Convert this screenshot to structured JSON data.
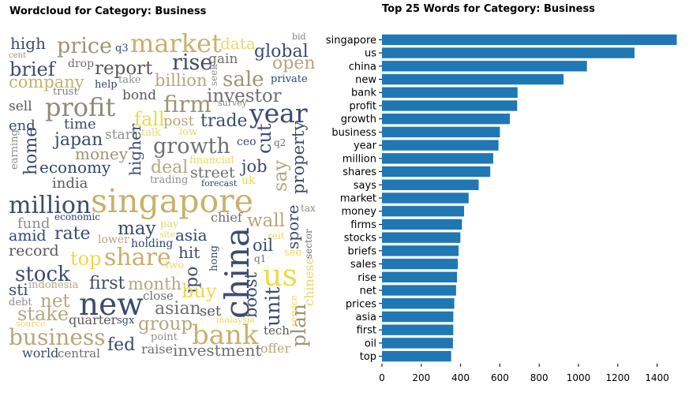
{
  "wordcloud": {
    "title": "Wordcloud for Category: Business",
    "words": [
      {
        "text": "high",
        "color": "#3e4a6e"
      },
      {
        "text": "q3",
        "color": "#2f4577"
      },
      {
        "text": "price",
        "color": "#9e9477"
      },
      {
        "text": "market",
        "color": "#c9b06c"
      },
      {
        "text": "data",
        "color": "#e8d86a"
      },
      {
        "text": "global",
        "color": "#3e4a6e"
      },
      {
        "text": "bid",
        "color": "#7f7f7f"
      },
      {
        "text": "cent",
        "color": "#9e9477"
      },
      {
        "text": "brief",
        "color": "#3e4a6e"
      },
      {
        "text": "drop",
        "color": "#6f6f6f"
      },
      {
        "text": "report",
        "color": "#595959"
      },
      {
        "text": "rise",
        "color": "#3e4a6e"
      },
      {
        "text": "gain",
        "color": "#6f6f6f"
      },
      {
        "text": "open",
        "color": "#b5a77e"
      },
      {
        "text": "company",
        "color": "#c9b06c"
      },
      {
        "text": "help",
        "color": "#2f4577"
      },
      {
        "text": "take",
        "color": "#8f8f8f"
      },
      {
        "text": "billion",
        "color": "#b5a77e"
      },
      {
        "text": "seek",
        "color": "#8f8f8f"
      },
      {
        "text": "sale",
        "color": "#9e9477"
      },
      {
        "text": "private",
        "color": "#2f4577"
      },
      {
        "text": "trust",
        "color": "#7f7f7f"
      },
      {
        "text": "bond",
        "color": "#595959"
      },
      {
        "text": "investor",
        "color": "#6f6f6f"
      },
      {
        "text": "sell",
        "color": "#595959"
      },
      {
        "text": "profit",
        "color": "#8f8a7a"
      },
      {
        "text": "firm",
        "color": "#9e9477"
      },
      {
        "text": "survey",
        "color": "#7f7f7f"
      },
      {
        "text": "year",
        "color": "#3e4a6e"
      },
      {
        "text": "end",
        "color": "#3e4a6e"
      },
      {
        "text": "time",
        "color": "#3e4a6e"
      },
      {
        "text": "fall",
        "color": "#f0d84a"
      },
      {
        "text": "post",
        "color": "#b5a77e"
      },
      {
        "text": "trade",
        "color": "#3e4a6e"
      },
      {
        "text": "start",
        "color": "#8f8f8f"
      },
      {
        "text": "talk",
        "color": "#e8d86a"
      },
      {
        "text": "low",
        "color": "#e8d86a"
      },
      {
        "text": "ceo",
        "color": "#3e4a6e"
      },
      {
        "text": "q2",
        "color": "#6f6f6f"
      },
      {
        "text": "earning",
        "color": "#8f8f8f"
      },
      {
        "text": "home",
        "color": "#3e4a6e"
      },
      {
        "text": "japan",
        "color": "#3e4a6e"
      },
      {
        "text": "higher",
        "color": "#3e4a6e"
      },
      {
        "text": "growth",
        "color": "#6f6f6f"
      },
      {
        "text": "cut",
        "color": "#3e4a6e"
      },
      {
        "text": "money",
        "color": "#9e9477"
      },
      {
        "text": "financial",
        "color": "#e8d86a"
      },
      {
        "text": "property",
        "color": "#3e4a6e"
      },
      {
        "text": "economy",
        "color": "#2f4577"
      },
      {
        "text": "deal",
        "color": "#b5a77e"
      },
      {
        "text": "street",
        "color": "#6f6f6f"
      },
      {
        "text": "job",
        "color": "#3e4a6e"
      },
      {
        "text": "say",
        "color": "#b5a77e"
      },
      {
        "text": "india",
        "color": "#595959"
      },
      {
        "text": "trading",
        "color": "#8f8f8f"
      },
      {
        "text": "forecast",
        "color": "#2f4577"
      },
      {
        "text": "uk",
        "color": "#f0d84a"
      },
      {
        "text": "million",
        "color": "#3e4a6e"
      },
      {
        "text": "singapore",
        "color": "#c9b06c"
      },
      {
        "text": "fund",
        "color": "#8f8f8f"
      },
      {
        "text": "economic",
        "color": "#2f4577"
      },
      {
        "text": "chief",
        "color": "#6f6f6f"
      },
      {
        "text": "wall",
        "color": "#b5a77e"
      },
      {
        "text": "tax",
        "color": "#8f8a7a"
      },
      {
        "text": "may",
        "color": "#3e4a6e"
      },
      {
        "text": "pay",
        "color": "#e8d86a"
      },
      {
        "text": "amid",
        "color": "#2f4577"
      },
      {
        "text": "rate",
        "color": "#3e4a6e"
      },
      {
        "text": "site",
        "color": "#e8d86a"
      },
      {
        "text": "asia",
        "color": "#2f4577"
      },
      {
        "text": "reit",
        "color": "#e8d86a"
      },
      {
        "text": "spore",
        "color": "#3e4a6e"
      },
      {
        "text": "sector",
        "color": "#6f6f6f"
      },
      {
        "text": "lower",
        "color": "#b5a77e"
      },
      {
        "text": "holding",
        "color": "#2f4577"
      },
      {
        "text": "china",
        "color": "#3e4a6e"
      },
      {
        "text": "record",
        "color": "#595959"
      },
      {
        "text": "hit",
        "color": "#3e4a6e"
      },
      {
        "text": "oil",
        "color": "#3e4a6e"
      },
      {
        "text": "see",
        "color": "#e8d86a"
      },
      {
        "text": "top",
        "color": "#f0d84a"
      },
      {
        "text": "share",
        "color": "#c9b06c"
      },
      {
        "text": "two",
        "color": "#e8d86a"
      },
      {
        "text": "ipo",
        "color": "#3e4a6e"
      },
      {
        "text": "q1",
        "color": "#6f6f6f"
      },
      {
        "text": "us",
        "color": "#f0d84a"
      },
      {
        "text": "chinese",
        "color": "#e8d86a"
      },
      {
        "text": "stock",
        "color": "#3e4a6e"
      },
      {
        "text": "hong",
        "color": "#3e4a6e"
      },
      {
        "text": "first",
        "color": "#3e4a6e"
      },
      {
        "text": "month",
        "color": "#b5a77e"
      },
      {
        "text": "boost",
        "color": "#3e4a6e"
      },
      {
        "text": "indonesia",
        "color": "#b5a77e"
      },
      {
        "text": "sti",
        "color": "#3e4a6e"
      },
      {
        "text": "close",
        "color": "#6f6f6f"
      },
      {
        "text": "buy",
        "color": "#f0d84a"
      },
      {
        "text": "debt",
        "color": "#8f8f8f"
      },
      {
        "text": "net",
        "color": "#b5a77e"
      },
      {
        "text": "new",
        "color": "#3e4a6e"
      },
      {
        "text": "asian",
        "color": "#6f6f6f"
      },
      {
        "text": "set",
        "color": "#595959"
      },
      {
        "text": "unit",
        "color": "#3e4a6e"
      },
      {
        "text": "plan",
        "color": "#9e9477"
      },
      {
        "text": "stake",
        "color": "#b5a77e"
      },
      {
        "text": "quarter",
        "color": "#595959"
      },
      {
        "text": "sgx",
        "color": "#3e4a6e"
      },
      {
        "text": "group",
        "color": "#b5a77e"
      },
      {
        "text": "malaysia",
        "color": "#e8d86a"
      },
      {
        "text": "service",
        "color": "#e8d86a"
      },
      {
        "text": "source",
        "color": "#e8d86a"
      },
      {
        "text": "tech",
        "color": "#595959"
      },
      {
        "text": "business",
        "color": "#b5a77e"
      },
      {
        "text": "point",
        "color": "#8f8f8f"
      },
      {
        "text": "bank",
        "color": "#c9b06c"
      },
      {
        "text": "fed",
        "color": "#3e4a6e"
      },
      {
        "text": "raise",
        "color": "#6f6f6f"
      },
      {
        "text": "investment",
        "color": "#6f6f6f"
      },
      {
        "text": "offer",
        "color": "#b5a77e"
      },
      {
        "text": "world",
        "color": "#3e4a6e"
      },
      {
        "text": "central",
        "color": "#6f6f6f"
      }
    ]
  },
  "chart_data": {
    "type": "bar",
    "orientation": "horizontal",
    "title": "Top 25 Words for Category: Business",
    "categories": [
      "singapore",
      "us",
      "china",
      "new",
      "bank",
      "profit",
      "growth",
      "business",
      "year",
      "million",
      "shares",
      "says",
      "market",
      "money",
      "firms",
      "stocks",
      "briefs",
      "sales",
      "rise",
      "net",
      "prices",
      "asia",
      "first",
      "oil",
      "top"
    ],
    "values": [
      1500,
      1285,
      1043,
      924,
      690,
      688,
      651,
      600,
      593,
      566,
      551,
      492,
      441,
      418,
      407,
      399,
      390,
      386,
      382,
      377,
      368,
      363,
      363,
      361,
      352
    ],
    "x_ticks": [
      0,
      200,
      400,
      600,
      800,
      1000,
      1200,
      1400
    ],
    "xlim": [
      0,
      1510
    ],
    "bar_color": "#1f77b4",
    "grid": false
  }
}
